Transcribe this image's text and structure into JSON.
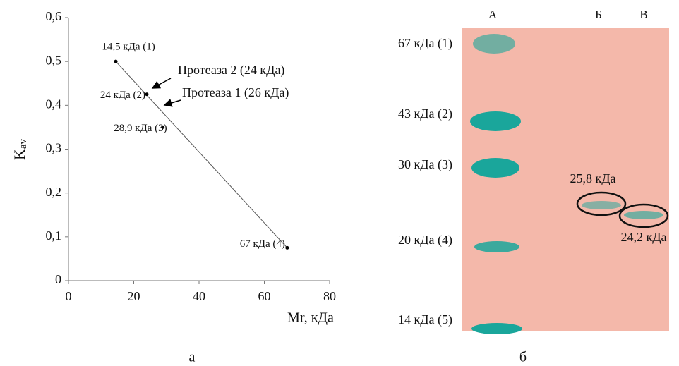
{
  "chart_data": {
    "type": "scatter",
    "x_label": "Mr, кДа",
    "y_label_main": "K",
    "y_label_sub": "av",
    "x": [
      14.5,
      24,
      28.9,
      67
    ],
    "values": [
      0.5,
      0.425,
      0.35,
      0.075
    ],
    "point_labels": [
      "14,5 кДа (1)",
      "24 кДа (2)",
      "28,9 кДа (3)",
      "67 кДа (4)"
    ],
    "trend_line": {
      "x": [
        14.5,
        67
      ],
      "y": [
        0.5,
        0.075
      ]
    },
    "annotations": [
      "Протеаза 2 (24 кДа)",
      "Протеаза 1 (26 кДа)"
    ],
    "color": "#000000",
    "xlim": [
      0,
      80
    ],
    "xticks": [
      0,
      20,
      40,
      60,
      80
    ],
    "ylim": [
      0,
      0.6
    ],
    "yticks": [
      0,
      {
        "value": 0.1,
        "label": "0,1"
      },
      {
        "value": 0.2,
        "label": "0,2"
      },
      {
        "value": 0.3,
        "label": "0,3"
      },
      {
        "value": 0.4,
        "label": "0,4"
      },
      {
        "value": 0.5,
        "label": "0,5"
      },
      {
        "value": 0.6,
        "label": "0,6"
      }
    ]
  },
  "gel": {
    "lanes": [
      "А",
      "Б",
      "В"
    ],
    "markers": [
      "67 кДа (1)",
      "43 кДа (2)",
      "30 кДа (3)",
      "20 кДа (4)",
      "14 кДа (5)"
    ],
    "bands": [
      "25,8 кДа",
      "24,2 кДа"
    ]
  },
  "panel_labels": [
    "а",
    "б"
  ]
}
